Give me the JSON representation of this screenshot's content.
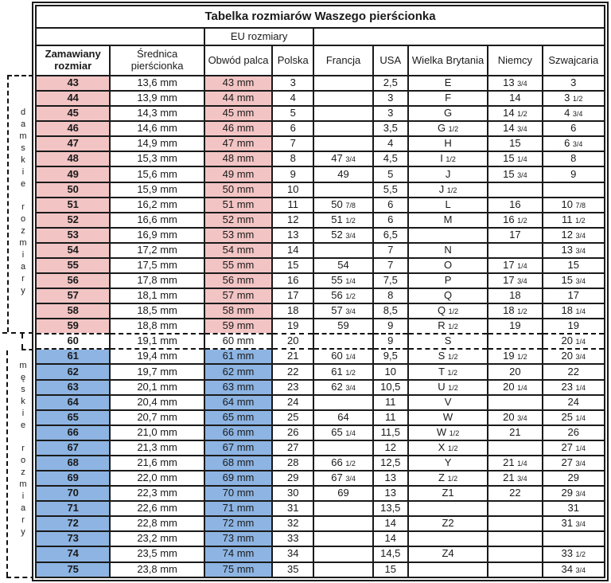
{
  "title": "Tabelka rozmiarów Waszego pierścionka",
  "eu_group_label": "EU rozmiary",
  "columns": [
    "Zamawiany rozmiar",
    "Średnica pierścionka",
    "Obwód palca",
    "Polska",
    "Francja",
    "USA",
    "Wielka Brytania",
    "Niemcy",
    "Szwajcaria"
  ],
  "column_keys": [
    "size",
    "diameter",
    "circumference",
    "poland",
    "france",
    "usa",
    "uk",
    "germany",
    "switzerland"
  ],
  "side_labels": {
    "women": "damskie rozmiary",
    "men": "męskie rozmiary"
  },
  "colors": {
    "women_row": "#f2c4c4",
    "men_row": "#8db4e2",
    "border": "#1a1a1a"
  },
  "rows": [
    {
      "g": "women",
      "c": [
        "43",
        "13,6 mm",
        "43 mm",
        "3",
        "",
        "2,5",
        "E",
        "13 3/4",
        "3"
      ]
    },
    {
      "g": "women",
      "c": [
        "44",
        "13,9 mm",
        "44 mm",
        "4",
        "",
        "3",
        "F",
        "14",
        "3 1/2"
      ]
    },
    {
      "g": "women",
      "c": [
        "45",
        "14,3 mm",
        "45 mm",
        "5",
        "",
        "3",
        "G",
        "14 1/2",
        "4 3/4"
      ]
    },
    {
      "g": "women",
      "c": [
        "46",
        "14,6 mm",
        "46 mm",
        "6",
        "",
        "3,5",
        "G 1/2",
        "14 3/4",
        "6"
      ]
    },
    {
      "g": "women",
      "c": [
        "47",
        "14,9 mm",
        "47 mm",
        "7",
        "",
        "4",
        "H",
        "15",
        "6 3/4"
      ]
    },
    {
      "g": "women",
      "c": [
        "48",
        "15,3 mm",
        "48 mm",
        "8",
        "47 3/4",
        "4,5",
        "I 1/2",
        "15 1/4",
        "8"
      ]
    },
    {
      "g": "women",
      "c": [
        "49",
        "15,6 mm",
        "49 mm",
        "9",
        "49",
        "5",
        "J",
        "15 3/4",
        "9"
      ]
    },
    {
      "g": "women",
      "c": [
        "50",
        "15,9 mm",
        "50 mm",
        "10",
        "",
        "5,5",
        "J 1/2",
        "",
        ""
      ]
    },
    {
      "g": "women",
      "c": [
        "51",
        "16,2 mm",
        "51 mm",
        "11",
        "50 7/8",
        "6",
        "L",
        "16",
        "10 7/8"
      ]
    },
    {
      "g": "women",
      "c": [
        "52",
        "16,6 mm",
        "52 mm",
        "12",
        "51 1/2",
        "6",
        "M",
        "16 1/2",
        "11 1/2"
      ]
    },
    {
      "g": "women",
      "c": [
        "53",
        "16,9 mm",
        "53 mm",
        "13",
        "52 3/4",
        "6,5",
        "",
        "17",
        "12 3/4"
      ]
    },
    {
      "g": "women",
      "c": [
        "54",
        "17,2 mm",
        "54 mm",
        "14",
        "",
        "7",
        "N",
        "",
        "13 3/4"
      ]
    },
    {
      "g": "women",
      "c": [
        "55",
        "17,5 mm",
        "55 mm",
        "15",
        "54",
        "7",
        "O",
        "17 1/4",
        "15"
      ]
    },
    {
      "g": "women",
      "c": [
        "56",
        "17,8 mm",
        "56 mm",
        "16",
        "55 1/4",
        "7,5",
        "P",
        "17 3/4",
        "15 3/4"
      ]
    },
    {
      "g": "women",
      "c": [
        "57",
        "18,1 mm",
        "57 mm",
        "17",
        "56 1/2",
        "8",
        "Q",
        "18",
        "17"
      ]
    },
    {
      "g": "women",
      "c": [
        "58",
        "18,5 mm",
        "58 mm",
        "18",
        "57 3/4",
        "8,5",
        "Q 1/2",
        "18 1/2",
        "18 1/4"
      ]
    },
    {
      "g": "women",
      "c": [
        "59",
        "18,8 mm",
        "59 mm",
        "19",
        "59",
        "9",
        "R 1/2",
        "19",
        "19"
      ]
    },
    {
      "g": "neutral",
      "c": [
        "60",
        "19,1 mm",
        "60 mm",
        "20",
        "",
        "9",
        "S",
        "",
        "20 1/4"
      ]
    },
    {
      "g": "men",
      "c": [
        "61",
        "19,4 mm",
        "61 mm",
        "21",
        "60 1/4",
        "9,5",
        "S 1/2",
        "19 1/2",
        "20 3/4"
      ]
    },
    {
      "g": "men",
      "c": [
        "62",
        "19,7 mm",
        "62 mm",
        "22",
        "61 1/2",
        "10",
        "T 1/2",
        "20",
        "22"
      ]
    },
    {
      "g": "men",
      "c": [
        "63",
        "20,1 mm",
        "63 mm",
        "23",
        "62 3/4",
        "10,5",
        "U 1/2",
        "20 1/4",
        "23 1/4"
      ]
    },
    {
      "g": "men",
      "c": [
        "64",
        "20,4 mm",
        "64 mm",
        "24",
        "",
        "11",
        "V",
        "",
        "24"
      ]
    },
    {
      "g": "men",
      "c": [
        "65",
        "20,7 mm",
        "65 mm",
        "25",
        "64",
        "11",
        "W",
        "20 3/4",
        "25 1/4"
      ]
    },
    {
      "g": "men",
      "c": [
        "66",
        "21,0 mm",
        "66 mm",
        "26",
        "65 1/4",
        "11,5",
        "W 1/2",
        "21",
        "26"
      ]
    },
    {
      "g": "men",
      "c": [
        "67",
        "21,3 mm",
        "67 mm",
        "27",
        "",
        "12",
        "X 1/2",
        "",
        "27 1/4"
      ]
    },
    {
      "g": "men",
      "c": [
        "68",
        "21,6 mm",
        "68 mm",
        "28",
        "66 1/2",
        "12,5",
        "Y",
        "21 1/4",
        "27 3/4"
      ]
    },
    {
      "g": "men",
      "c": [
        "69",
        "22,0 mm",
        "69 mm",
        "29",
        "67 3/4",
        "13",
        "Z 1/2",
        "21 3/4",
        "29"
      ]
    },
    {
      "g": "men",
      "c": [
        "70",
        "22,3 mm",
        "70 mm",
        "30",
        "69",
        "13",
        "Z1",
        "22",
        "29 3/4"
      ]
    },
    {
      "g": "men",
      "c": [
        "71",
        "22,6 mm",
        "71 mm",
        "31",
        "",
        "13,5",
        "",
        "",
        "31"
      ]
    },
    {
      "g": "men",
      "c": [
        "72",
        "22,8 mm",
        "72 mm",
        "32",
        "",
        "14",
        "Z2",
        "",
        "31 3/4"
      ]
    },
    {
      "g": "men",
      "c": [
        "73",
        "23,2 mm",
        "73 mm",
        "33",
        "",
        "14",
        "",
        "",
        ""
      ]
    },
    {
      "g": "men",
      "c": [
        "74",
        "23,5 mm",
        "74 mm",
        "34",
        "",
        "14,5",
        "Z4",
        "",
        "33 1/2"
      ]
    },
    {
      "g": "men",
      "c": [
        "75",
        "23,8 mm",
        "75 mm",
        "35",
        "",
        "15",
        "",
        "",
        "34 3/4"
      ]
    }
  ]
}
